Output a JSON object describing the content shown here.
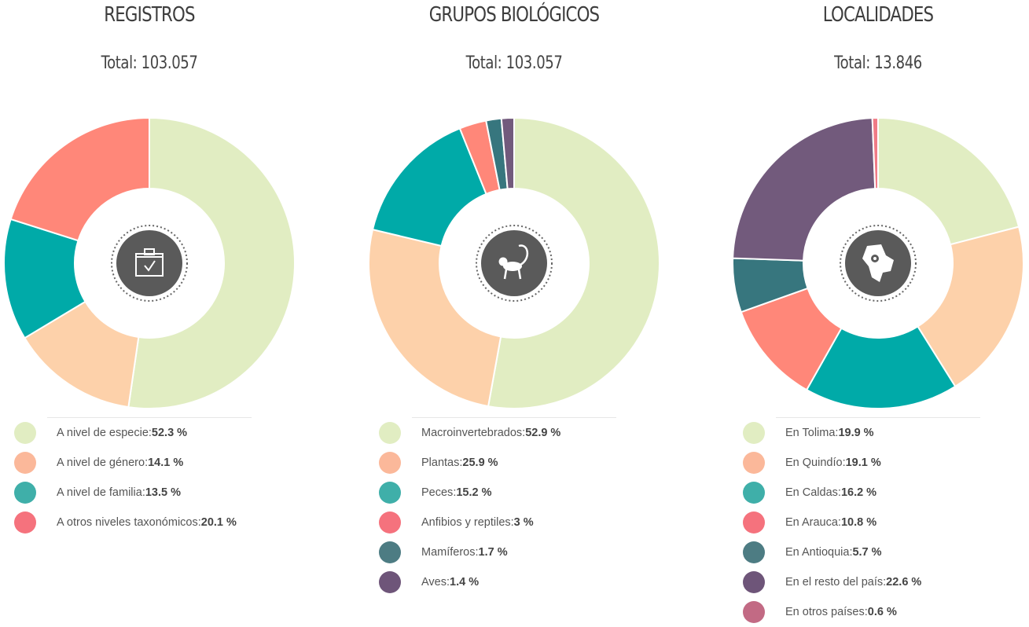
{
  "chart_data": [
    {
      "type": "pie",
      "title": "REGISTROS",
      "subtitle": "Total: 103.057",
      "icon": "clipboard-check-icon",
      "categories": [
        "A nivel de especie",
        "A nivel de género",
        "A nivel de familia",
        "A otros niveles taxonómicos"
      ],
      "values": [
        52.3,
        14.1,
        13.5,
        20.1
      ],
      "value_labels": [
        "52.3 %",
        "14.1 %",
        "13.5 %",
        "20.1 %"
      ],
      "colors": [
        "#e1edc2",
        "#fdd1aa",
        "#00aaa8",
        "#ff8779"
      ],
      "legend_colors": [
        "#e1edc2",
        "#fbb89a",
        "#3fafa9",
        "#f5727d"
      ]
    },
    {
      "type": "pie",
      "title": "GRUPOS BIOLÓGICOS",
      "subtitle": "Total: 103.057",
      "icon": "monkey-icon",
      "categories": [
        "Macroinvertebrados",
        "Plantas",
        "Peces",
        "Anfibios y reptiles",
        "Mamíferos",
        "Aves"
      ],
      "values": [
        52.9,
        25.9,
        15.2,
        3,
        1.7,
        1.4
      ],
      "value_labels": [
        "52.9 %",
        "25.9 %",
        "15.2 %",
        "3 %",
        "1.7 %",
        "1.4 %"
      ],
      "colors": [
        "#e1edc2",
        "#fdd1aa",
        "#00aaa8",
        "#ff8779",
        "#37767e",
        "#725a7c"
      ],
      "legend_colors": [
        "#e1edc2",
        "#fbb89a",
        "#3fafa9",
        "#f5727d",
        "#4d7c83",
        "#6e5579"
      ]
    },
    {
      "type": "pie",
      "title": "LOCALIDADES",
      "subtitle": "Total: 13.846",
      "icon": "colombia-map-pin-icon",
      "categories": [
        "En Tolima",
        "En Quindío",
        "En Caldas",
        "En Arauca",
        "En Antioquia",
        "En el resto del país",
        "En otros países"
      ],
      "values": [
        19.9,
        19.1,
        16.2,
        10.8,
        5.7,
        22.6,
        0.6
      ],
      "value_labels": [
        "19.9 %",
        "19.1 %",
        "16.2 %",
        "10.8 %",
        "5.7 %",
        "22.6 %",
        "0.6 %"
      ],
      "colors": [
        "#e1edc2",
        "#fdd1aa",
        "#00aaa8",
        "#ff8779",
        "#37767e",
        "#725a7c",
        "#f07b86"
      ],
      "legend_colors": [
        "#e1edc2",
        "#fbb89a",
        "#3fafa9",
        "#f5727d",
        "#4d7c83",
        "#6e5579",
        "#c26a84"
      ]
    }
  ]
}
